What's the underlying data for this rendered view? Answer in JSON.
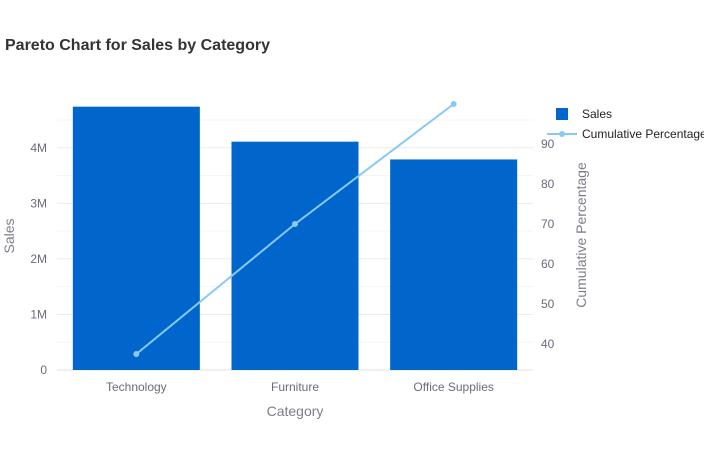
{
  "chart_data": {
    "type": "bar",
    "title": "Pareto Chart for Sales by Category",
    "categories": [
      "Technology",
      "Furniture",
      "Office Supplies"
    ],
    "xlabel": "Category",
    "ylabel": "Sales",
    "y2label": "Cumulative Percentage",
    "ylim": [
      0,
      4860000
    ],
    "y2lim": [
      33.5,
      101
    ],
    "y_ticks": [
      0,
      1000000,
      2000000,
      3000000,
      4000000
    ],
    "y_tick_labels": [
      "0",
      "1M",
      "2M",
      "3M",
      "4M"
    ],
    "y2_ticks": [
      40,
      50,
      60,
      70,
      80,
      90
    ],
    "y2_tick_labels": [
      "40",
      "50",
      "60",
      "70",
      "80",
      "90"
    ],
    "series": [
      {
        "name": "Sales",
        "type": "bar",
        "axis": "left",
        "values": [
          4740000,
          4110000,
          3790000
        ],
        "color": "#0066cc"
      },
      {
        "name": "Cumulative Percentage",
        "type": "line",
        "axis": "right",
        "values": [
          37.5,
          70.0,
          100.0
        ],
        "color": "#88c9f5"
      }
    ],
    "grid": true,
    "legend": "top-right"
  }
}
